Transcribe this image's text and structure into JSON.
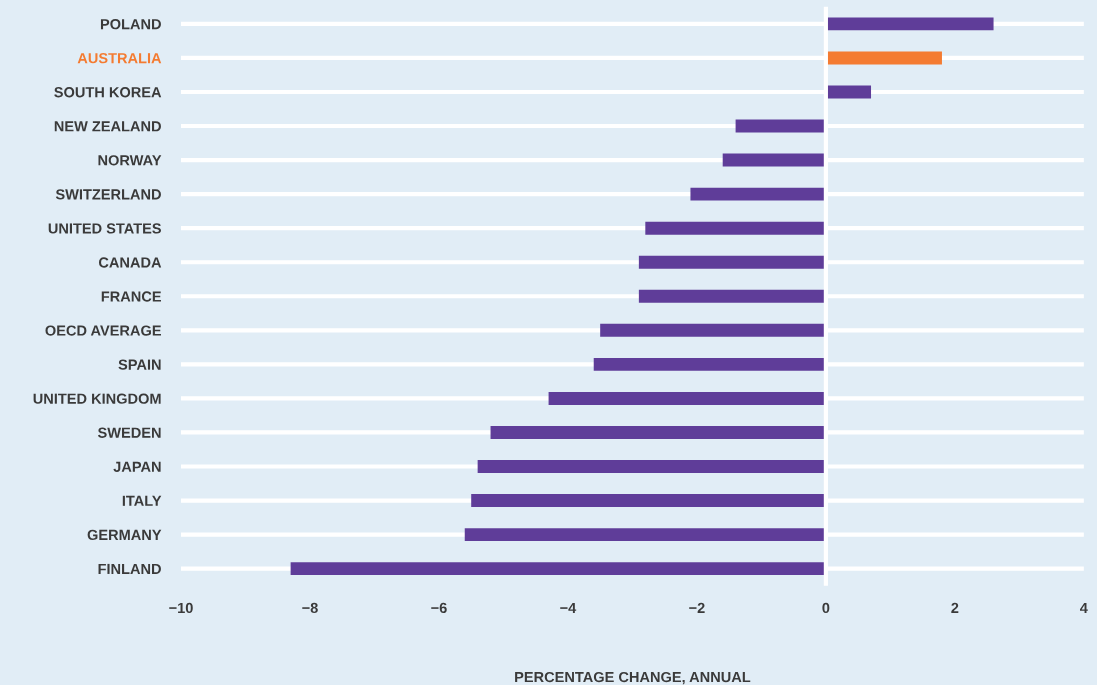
{
  "chart_data": {
    "type": "bar",
    "orientation": "horizontal",
    "xlabel": "PERCENTAGE CHANGE, ANNUAL",
    "categories": [
      "POLAND",
      "AUSTRALIA",
      "SOUTH KOREA",
      "NEW ZEALAND",
      "NORWAY",
      "SWITZERLAND",
      "UNITED STATES",
      "CANADA",
      "FRANCE",
      "OECD AVERAGE",
      "SPAIN",
      "UNITED KINGDOM",
      "SWEDEN",
      "JAPAN",
      "ITALY",
      "GERMANY",
      "FINLAND"
    ],
    "values": [
      2.6,
      1.8,
      0.7,
      -1.4,
      -1.6,
      -2.1,
      -2.8,
      -2.9,
      -2.9,
      -3.5,
      -3.6,
      -4.3,
      -5.2,
      -5.4,
      -5.5,
      -5.6,
      -8.3
    ],
    "colors": [
      "#5f3d99",
      "#f47b31",
      "#5f3d99",
      "#5f3d99",
      "#5f3d99",
      "#5f3d99",
      "#5f3d99",
      "#5f3d99",
      "#5f3d99",
      "#5f3d99",
      "#5f3d99",
      "#5f3d99",
      "#5f3d99",
      "#5f3d99",
      "#5f3d99",
      "#5f3d99",
      "#5f3d99"
    ],
    "xlim": [
      -10,
      4
    ],
    "xticks": [
      {
        "value": -10,
        "label": "−10"
      },
      {
        "value": -8,
        "label": "−8"
      },
      {
        "value": -6,
        "label": "−6"
      },
      {
        "value": -4,
        "label": "−4"
      },
      {
        "value": -2,
        "label": "−2"
      },
      0,
      2,
      4
    ],
    "grid": "y",
    "ref_lines": [
      {
        "axis": "x",
        "value": 0,
        "color": "#ffffff"
      }
    ]
  }
}
